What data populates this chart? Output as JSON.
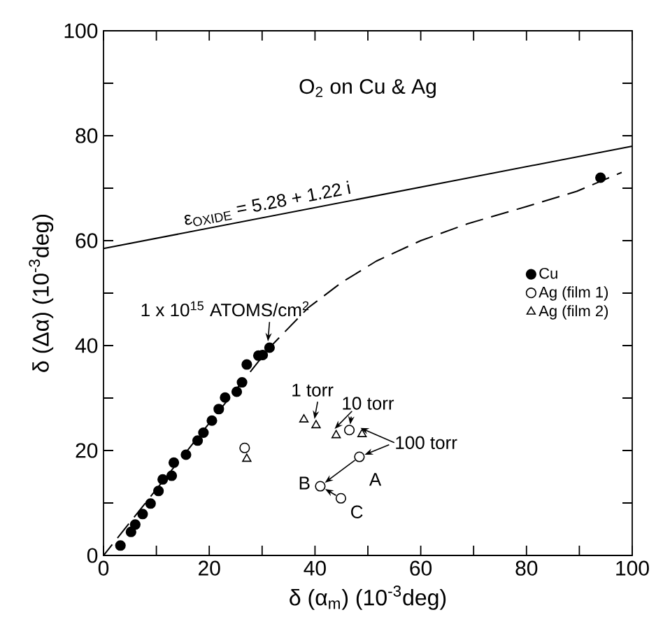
{
  "chart_data": {
    "type": "scatter",
    "title": "O$_{2}$ on Cu & Ag",
    "xlabel": "δ (α$_{m}$) (10$^{-3}$deg)",
    "ylabel": "δ (Δα) (10$^{-3}$deg)",
    "xlim": [
      0,
      100
    ],
    "ylim": [
      0,
      100
    ],
    "xticks": [
      0,
      {
        "value": 10,
        "label": null
      },
      20,
      {
        "value": 30,
        "label": null
      },
      40,
      {
        "value": 50,
        "label": null
      },
      60,
      {
        "value": 70,
        "label": null
      },
      80,
      {
        "value": 90,
        "label": null
      },
      100
    ],
    "yticks": [
      0,
      {
        "value": 10,
        "label": null
      },
      20,
      {
        "value": 30,
        "label": null
      },
      40,
      {
        "value": 50,
        "label": null
      },
      60,
      {
        "value": 70,
        "label": null
      },
      80,
      {
        "value": 90,
        "label": null
      },
      100
    ],
    "grid": false,
    "legend": "right",
    "series": [
      {
        "name": "Cu",
        "marker": "circle",
        "color": "#000000",
        "x": [
          3.2,
          5.2,
          6.0,
          7.4,
          8.9,
          10.4,
          11.2,
          12.9,
          13.3,
          15.6,
          17.8,
          18.9,
          20.5,
          21.8,
          23.0,
          25.2,
          26.2,
          27.1,
          29.3,
          30.1,
          31.4,
          94.0
        ],
        "values": [
          1.9,
          4.5,
          5.9,
          7.9,
          9.9,
          12.3,
          14.5,
          15.2,
          17.7,
          19.2,
          21.9,
          23.4,
          25.7,
          27.9,
          30.1,
          31.2,
          33.0,
          36.4,
          38.1,
          38.2,
          39.6,
          72.0
        ]
      },
      {
        "name": "Ag (film 1)",
        "marker": "circle",
        "color": "#000000",
        "x": [
          26.7,
          46.5,
          48.4,
          41.0,
          44.9
        ],
        "values": [
          20.5,
          23.9,
          18.8,
          13.2,
          10.9
        ]
      },
      {
        "name": "Ag (film 2)",
        "marker": "triangle",
        "color": "#000000",
        "x": [
          27.1,
          37.9,
          40.2,
          44.0,
          48.9
        ],
        "values": [
          18.4,
          25.9,
          24.8,
          22.9,
          23.1
        ]
      },
      {
        "type": "line",
        "line_style": "solid",
        "color": "#000000",
        "x": [
          0,
          100
        ],
        "values": [
          58.5,
          78.0
        ]
      },
      {
        "type": "line",
        "line_style": "dashed",
        "color": "#000000",
        "x": [
          0,
          31.4,
          38.7,
          45.0,
          51.6,
          60.0,
          68.8,
          80.0,
          89.5,
          98.0
        ],
        "values": [
          0,
          39.6,
          47.2,
          52.0,
          56.1,
          60.0,
          63.2,
          66.5,
          69.4,
          73.0
        ]
      }
    ],
    "annotations": [
      {
        "text": "1 x 10$^{15}$ ATOMS/cm$^{2}$",
        "x": 31.4,
        "y": 39.6
      },
      {
        "text": "1 torr",
        "x": 40.2,
        "y": 24.8
      },
      {
        "text": "10 torr",
        "x": 44.0,
        "y": 22.9
      },
      {
        "text": "100 torr",
        "x": 48.9,
        "y": 23.1
      },
      {
        "text": "A",
        "x": 48.4,
        "y": 18.8
      },
      {
        "text": "B",
        "x": 41.0,
        "y": 13.2
      },
      {
        "text": "C",
        "x": 44.9,
        "y": 10.9
      },
      {
        "text": "ε$_{OXIDE}$ = 5.28 + 1.22 i",
        "x": 30,
        "y": 64.4
      }
    ]
  }
}
